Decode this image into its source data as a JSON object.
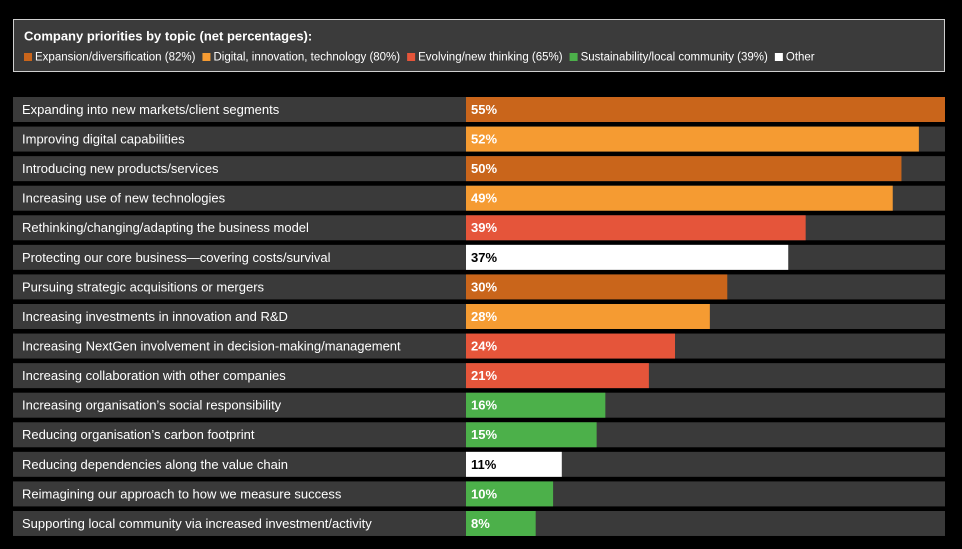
{
  "chart_data": {
    "type": "bar",
    "orientation": "horizontal",
    "title": "Company priorities by topic (net percentages):",
    "legend": [
      {
        "label": "Expansion/diversification (82%)",
        "color": "#c9651b"
      },
      {
        "label": "Digital, innovation, technology (80%)",
        "color": "#f59b32"
      },
      {
        "label": "Evolving/new thinking (65%)",
        "color": "#e5553a"
      },
      {
        "label": "Sustainability/local community (39%)",
        "color": "#4cb04a"
      },
      {
        "label": "Other",
        "color": "#ffffff"
      }
    ],
    "categories": [
      "Expanding into new markets/client segments",
      "Improving digital capabilities",
      "Introducing new products/services",
      "Increasing use of new technologies",
      "Rethinking/changing/adapting the business model",
      "Protecting our core business—covering costs/survival",
      "Pursuing strategic acquisitions or mergers",
      "Increasing investments in innovation and R&D",
      "Increasing NextGen involvement in decision-making/management",
      "Increasing collaboration with other companies",
      "Increasing organisation’s social responsibility",
      "Reducing organisation’s carbon footprint",
      "Reducing dependencies along the value chain",
      "Reimagining our approach to how we measure success",
      "Supporting local community via increased investment/activity"
    ],
    "values": [
      55,
      52,
      50,
      49,
      39,
      37,
      30,
      28,
      24,
      21,
      16,
      15,
      11,
      10,
      8
    ],
    "value_labels": [
      "55%",
      "52%",
      "50%",
      "49%",
      "39%",
      "37%",
      "30%",
      "28%",
      "24%",
      "21%",
      "16%",
      "15%",
      "11%",
      "10%",
      "8%"
    ],
    "colors": [
      "#c9651b",
      "#f59b32",
      "#c9651b",
      "#f59b32",
      "#e5553a",
      "#ffffff",
      "#c9651b",
      "#f59b32",
      "#e5553a",
      "#e5553a",
      "#4cb04a",
      "#4cb04a",
      "#ffffff",
      "#4cb04a",
      "#4cb04a"
    ],
    "xlim": [
      0,
      55
    ]
  }
}
